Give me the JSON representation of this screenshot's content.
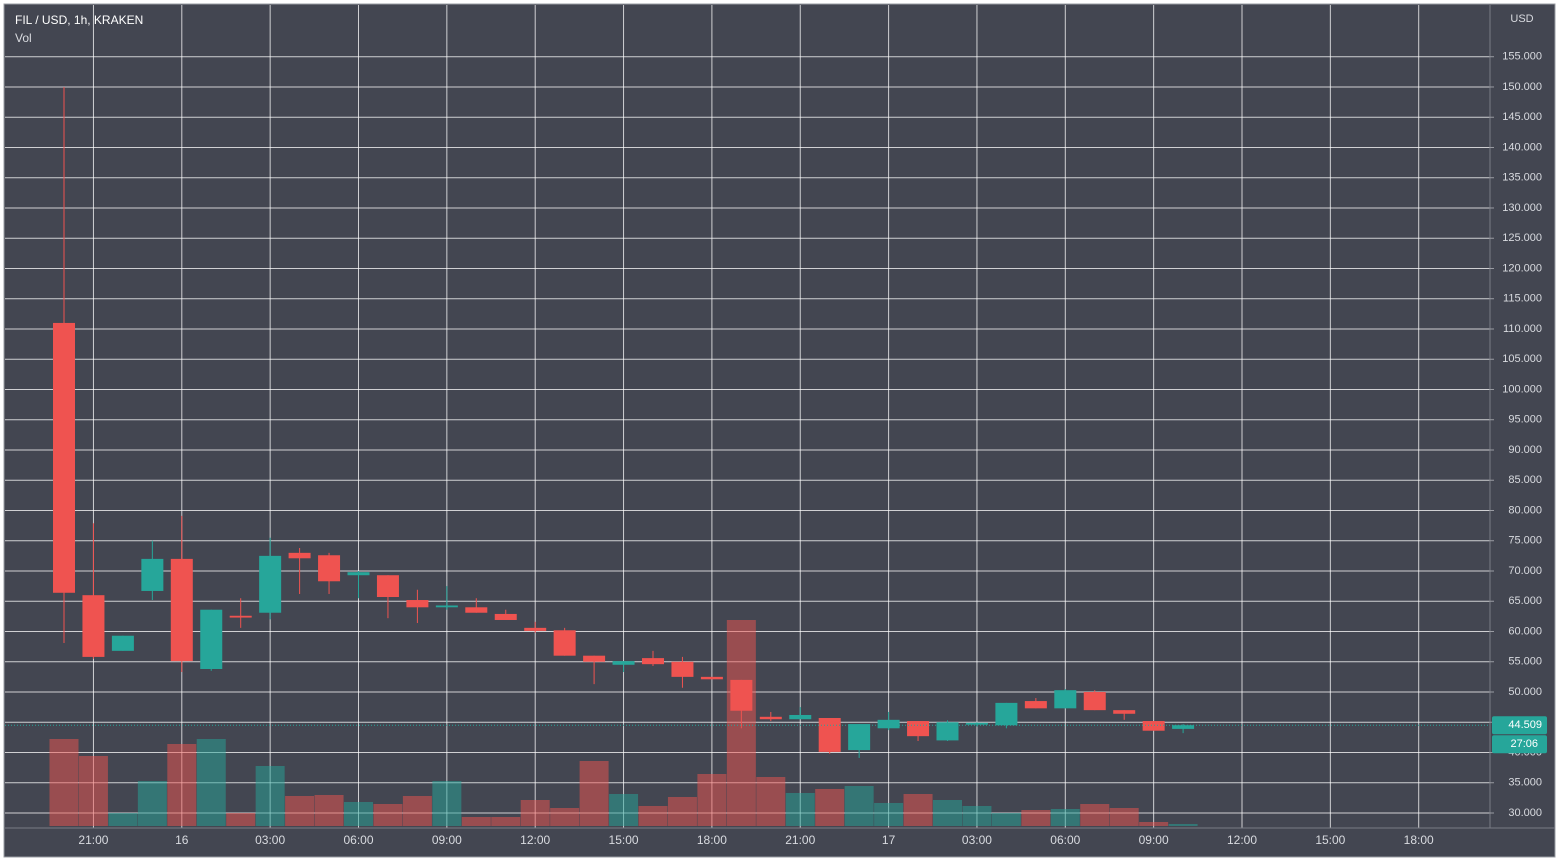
{
  "chart_data": {
    "type": "candlestick",
    "title": "FIL / USD, 1h, KRAKEN",
    "subtitle": "Vol",
    "y_axis_label": "USD",
    "categories": [
      null,
      "21:00",
      null,
      null,
      "16",
      null,
      null,
      "03:00",
      null,
      null,
      "06:00",
      null,
      null,
      "09:00",
      null,
      null,
      "12:00",
      null,
      null,
      "15:00",
      null,
      null,
      "18:00",
      null,
      null,
      "21:00",
      null,
      null,
      "17",
      null,
      null,
      "03:00",
      null,
      null,
      "06:00",
      null,
      null,
      "09:00",
      null,
      null,
      "12:00",
      null,
      null,
      "15:00",
      null,
      null,
      "18:00",
      null,
      null
    ],
    "open": [
      111.0,
      66.0,
      56.8,
      66.7,
      72.0,
      53.8,
      62.6,
      63.1,
      73.0,
      72.6,
      69.3,
      69.3,
      65.2,
      64.0,
      64.0,
      62.9,
      60.6,
      60.2,
      56.0,
      54.5,
      55.6,
      55.0,
      52.5,
      52.0,
      45.9,
      45.5,
      45.7,
      40.4,
      44.0,
      45.2,
      42.0,
      44.6,
      44.5,
      48.5,
      47.3,
      50.0,
      47.0,
      45.2,
      43.9,
      null,
      null,
      null,
      null,
      null,
      null,
      null,
      null,
      null,
      null
    ],
    "high": [
      150.0,
      77.9,
      59.3,
      75.0,
      79.1,
      63.6,
      65.5,
      75.5,
      73.8,
      73.0,
      70.0,
      69.3,
      66.9,
      67.5,
      65.5,
      63.6,
      61.6,
      60.6,
      56.0,
      55.1,
      56.8,
      55.8,
      52.5,
      52.0,
      46.7,
      47.5,
      45.7,
      44.7,
      46.7,
      45.2,
      45.3,
      45.0,
      48.2,
      49.0,
      50.5,
      50.3,
      47.0,
      45.2,
      44.7,
      null,
      null,
      null,
      null,
      null,
      null,
      null,
      null,
      null,
      null
    ],
    "low": [
      58.1,
      55.5,
      56.8,
      65.2,
      53.3,
      53.5,
      60.6,
      62.0,
      66.2,
      66.2,
      65.5,
      62.2,
      61.4,
      63.6,
      63.1,
      61.9,
      59.8,
      56.0,
      51.3,
      53.3,
      54.3,
      50.7,
      52.1,
      44.0,
      45.2,
      45.5,
      39.8,
      39.1,
      43.7,
      41.9,
      41.9,
      44.3,
      44.0,
      47.3,
      47.3,
      47.0,
      45.4,
      43.6,
      43.2,
      null,
      null,
      null,
      null,
      null,
      null,
      null,
      null,
      null,
      null
    ],
    "close": [
      66.4,
      55.8,
      59.3,
      72.0,
      55.1,
      63.6,
      62.3,
      72.5,
      72.1,
      68.3,
      69.8,
      65.7,
      64.0,
      64.3,
      63.1,
      61.9,
      60.1,
      56.0,
      55.0,
      55.1,
      54.6,
      52.5,
      52.1,
      46.9,
      45.5,
      46.2,
      40.1,
      44.7,
      45.4,
      42.7,
      45.0,
      44.9,
      48.2,
      47.3,
      50.3,
      47.0,
      46.4,
      43.6,
      44.509,
      null,
      null,
      null,
      null,
      null,
      null,
      null,
      null,
      null,
      null
    ],
    "volume": [
      87,
      70,
      13,
      45,
      82,
      87,
      13,
      60,
      30,
      31,
      24,
      22,
      30,
      45,
      9,
      9,
      26,
      18,
      65,
      32,
      20,
      29,
      52,
      206,
      49,
      33,
      37,
      40,
      23,
      32,
      26,
      20,
      13,
      16,
      17,
      22,
      18,
      4,
      2,
      null,
      null,
      null,
      null,
      null,
      null,
      null,
      null,
      null,
      null
    ],
    "vlim": [
      0,
      240
    ],
    "up_color": "#26a69a",
    "down_color": "#ef5350",
    "ylim": [
      27.52,
      163.55
    ],
    "yticks": [
      {
        "value": 30,
        "label": "30.000"
      },
      {
        "value": 35,
        "label": "35.000"
      },
      {
        "value": 40,
        "label": "40.000"
      },
      {
        "value": 45,
        "label": "45.000"
      },
      {
        "value": 50,
        "label": "50.000"
      },
      {
        "value": 55,
        "label": "55.000"
      },
      {
        "value": 60,
        "label": "60.000"
      },
      {
        "value": 65,
        "label": "65.000"
      },
      {
        "value": 70,
        "label": "70.000"
      },
      {
        "value": 75,
        "label": "75.000"
      },
      {
        "value": 80,
        "label": "80.000"
      },
      {
        "value": 85,
        "label": "85.000"
      },
      {
        "value": 90,
        "label": "90.000"
      },
      {
        "value": 95,
        "label": "95.000"
      },
      {
        "value": 100,
        "label": "100.000"
      },
      {
        "value": 105,
        "label": "105.000"
      },
      {
        "value": 110,
        "label": "110.000"
      },
      {
        "value": 115,
        "label": "115.000"
      },
      {
        "value": 120,
        "label": "120.000"
      },
      {
        "value": 125,
        "label": "125.000"
      },
      {
        "value": 130,
        "label": "130.000"
      },
      {
        "value": 135,
        "label": "135.000"
      },
      {
        "value": 140,
        "label": "140.000"
      },
      {
        "value": 145,
        "label": "145.000"
      },
      {
        "value": 150,
        "label": "150.000"
      },
      {
        "value": 155,
        "label": "155.000"
      }
    ],
    "last_price": 44.509,
    "countdown": "27:06",
    "grid": true
  }
}
